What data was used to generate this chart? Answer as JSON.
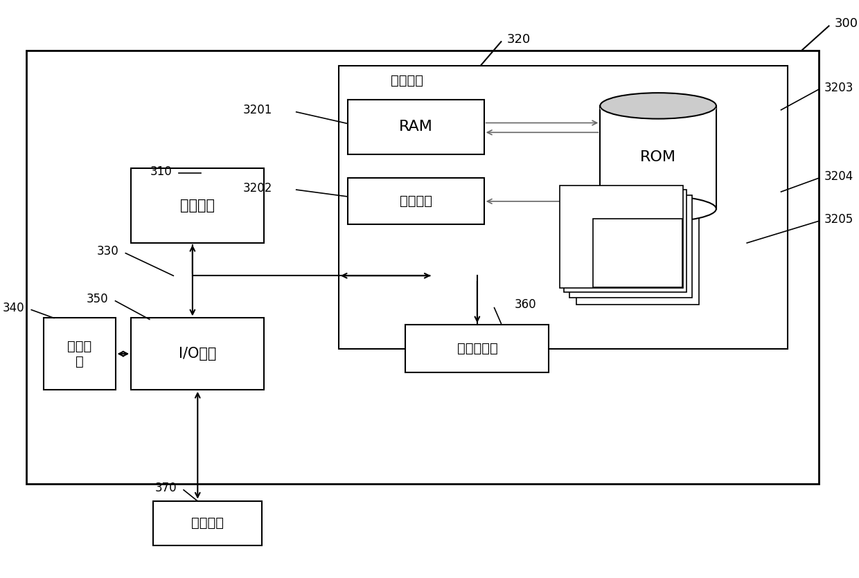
{
  "bg_color": "#ffffff",
  "text_cunchu": "存储单元",
  "text_RAM": "RAM",
  "text_gaosuhucun": "高速缓存",
  "text_ROM": "ROM",
  "text_chulijiyuan": "处理单元",
  "text_xianshi": "显示单\n元",
  "text_IO": "I/O接口",
  "text_wangluo": "网络适配器",
  "text_waibu": "外部设备",
  "label_300": "300",
  "label_310": "310",
  "label_320": "320",
  "label_330": "330",
  "label_340": "340",
  "label_350": "350",
  "label_360": "360",
  "label_370": "370",
  "label_3201": "3201",
  "label_3202": "3202",
  "label_3203": "3203",
  "label_3204": "3204",
  "label_3205": "3205"
}
